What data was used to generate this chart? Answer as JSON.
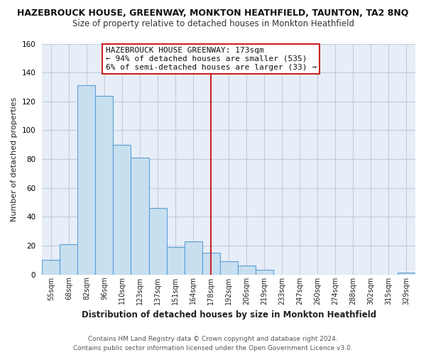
{
  "title": "HAZEBROUCK HOUSE, GREENWAY, MONKTON HEATHFIELD, TAUNTON, TA2 8NQ",
  "subtitle": "Size of property relative to detached houses in Monkton Heathfield",
  "xlabel": "Distribution of detached houses by size in Monkton Heathfield",
  "ylabel": "Number of detached properties",
  "bar_labels": [
    "55sqm",
    "68sqm",
    "82sqm",
    "96sqm",
    "110sqm",
    "123sqm",
    "137sqm",
    "151sqm",
    "164sqm",
    "178sqm",
    "192sqm",
    "206sqm",
    "219sqm",
    "233sqm",
    "247sqm",
    "260sqm",
    "274sqm",
    "288sqm",
    "302sqm",
    "315sqm",
    "329sqm"
  ],
  "bar_values": [
    10,
    21,
    131,
    124,
    90,
    81,
    46,
    19,
    23,
    15,
    9,
    6,
    3,
    0,
    0,
    0,
    0,
    0,
    0,
    0,
    1
  ],
  "bar_color": "#c8dff0",
  "bar_edge_color": "#5a9fd4",
  "vline_x_index": 9,
  "vline_color": "#cc2222",
  "ylim": [
    0,
    160
  ],
  "yticks": [
    0,
    20,
    40,
    60,
    80,
    100,
    120,
    140,
    160
  ],
  "annotation_title": "HAZEBROUCK HOUSE GREENWAY: 173sqm",
  "annotation_line1": "← 94% of detached houses are smaller (535)",
  "annotation_line2": "6% of semi-detached houses are larger (33) →",
  "footer_line1": "Contains HM Land Registry data © Crown copyright and database right 2024.",
  "footer_line2": "Contains public sector information licensed under the Open Government Licence v3.0.",
  "fig_bg_color": "#ffffff",
  "plot_bg_color": "#e8eef8",
  "grid_color": "#c0cce0",
  "title_fontsize": 9,
  "subtitle_fontsize": 8.5,
  "xlabel_fontsize": 8.5,
  "ylabel_fontsize": 8,
  "tick_fontsize": 7,
  "annotation_fontsize": 8,
  "footer_fontsize": 6.5
}
